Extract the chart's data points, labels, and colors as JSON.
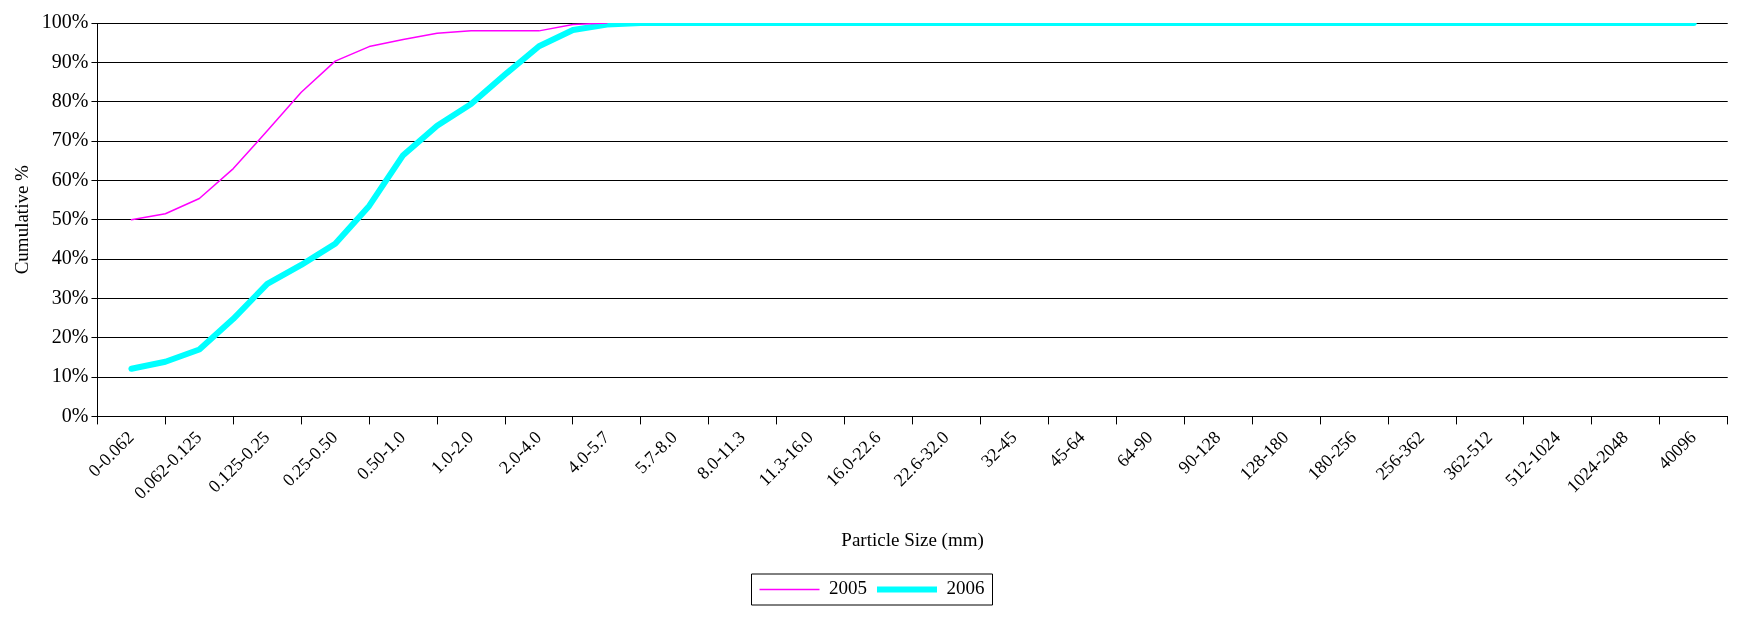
{
  "chart_data": {
    "type": "line",
    "xlabel": "Particle Size (mm)",
    "ylabel": "Cumulative %",
    "categories": [
      null,
      "0-0.062",
      null,
      "0.062-0.125",
      null,
      "0.125-0.25",
      null,
      "0.25-0.50",
      null,
      "0.50-1.0",
      null,
      "1.0-2.0",
      null,
      "2.0-4.0",
      null,
      "4.0-5.7",
      null,
      "5.7-8.0",
      null,
      "8.0-11.3",
      null,
      "11.3-16.0",
      null,
      "16.0-22.6",
      null,
      "22.6-32.0",
      null,
      "32-45",
      null,
      "45-64",
      null,
      "64-90",
      null,
      "90-128",
      null,
      "128-180",
      null,
      "180-256",
      null,
      "256-362",
      null,
      "362-512",
      null,
      "512-1024",
      null,
      "1024-2048",
      null,
      "40096",
      null
    ],
    "series": [
      {
        "name": "2005",
        "color": "#ff00ff",
        "values": [
          null,
          50,
          51.5,
          55.4,
          63,
          72.6,
          82.4,
          90.3,
          94,
          95.8,
          97.4,
          98,
          98,
          98,
          99.6,
          100,
          null,
          null,
          null,
          null,
          null,
          null,
          null,
          null,
          null,
          null,
          null,
          null,
          null,
          null,
          null,
          null,
          null,
          null,
          null,
          null,
          null,
          null,
          null,
          null,
          null,
          null,
          null,
          null,
          null,
          null,
          null,
          null,
          null
        ]
      },
      {
        "name": "2006",
        "color": "#00ffff",
        "values": [
          null,
          12.1,
          13.9,
          17,
          24.8,
          33.7,
          38.5,
          43.9,
          53.5,
          66.4,
          73.9,
          79.4,
          86.9,
          94.1,
          98.2,
          99.6,
          100,
          100,
          100,
          100,
          100,
          100,
          100,
          100,
          100,
          100,
          100,
          100,
          100,
          100,
          100,
          100,
          100,
          100,
          100,
          100,
          100,
          100,
          100,
          100,
          100,
          100,
          100,
          100,
          100,
          100,
          100,
          100,
          null
        ]
      }
    ],
    "ylim": [
      0,
      100
    ],
    "yticks": [
      {
        "value": 0,
        "label": "0%"
      },
      {
        "value": 10,
        "label": "10%"
      },
      {
        "value": 20,
        "label": "20%"
      },
      {
        "value": 30,
        "label": "30%"
      },
      {
        "value": 40,
        "label": "40%"
      },
      {
        "value": 50,
        "label": "50%"
      },
      {
        "value": 60,
        "label": "60%"
      },
      {
        "value": 70,
        "label": "70%"
      },
      {
        "value": 80,
        "label": "80%"
      },
      {
        "value": 90,
        "label": "90%"
      },
      {
        "value": 100,
        "label": "100%"
      }
    ],
    "grid": "y",
    "legend": "bottom",
    "marker": "none",
    "line_style": "solid"
  }
}
